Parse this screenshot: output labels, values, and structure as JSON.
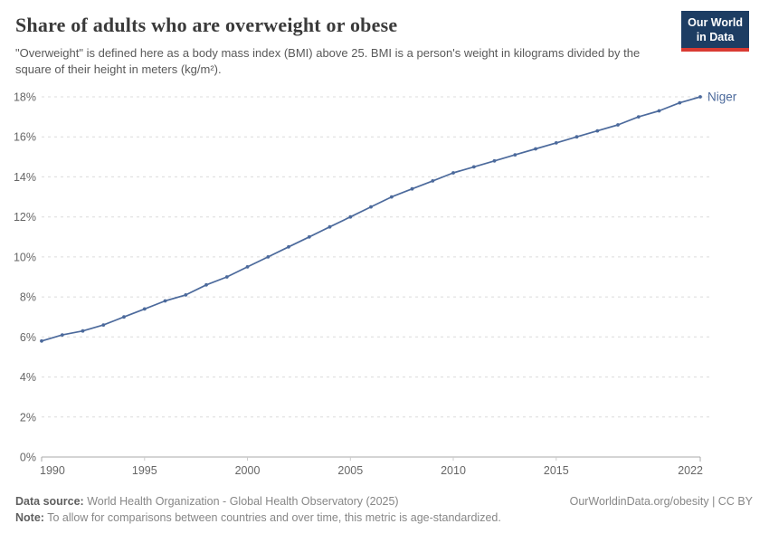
{
  "header": {
    "title": "Share of adults who are overweight or obese",
    "subtitle": "\"Overweight\" is defined here as a body mass index (BMI) above 25. BMI is a person's weight in kilograms divided by the square of their height in meters (kg/m²).",
    "logo_line1": "Our World",
    "logo_line2": "in Data",
    "logo_bg_color": "#1d3d63",
    "logo_stripe_color": "#d93a32"
  },
  "footer": {
    "data_source_label": "Data source:",
    "data_source_value": "World Health Organization - Global Health Observatory (2025)",
    "link": "OurWorldinData.org/obesity | CC BY",
    "note_label": "Note:",
    "note_value": "To allow for comparisons between countries and over time, this metric is age-standardized."
  },
  "chart_data": {
    "type": "line",
    "title": "Share of adults who are overweight or obese",
    "x": [
      1990,
      1991,
      1992,
      1993,
      1994,
      1995,
      1996,
      1997,
      1998,
      1999,
      2000,
      2001,
      2002,
      2003,
      2004,
      2005,
      2006,
      2007,
      2008,
      2009,
      2010,
      2011,
      2012,
      2013,
      2014,
      2015,
      2016,
      2017,
      2018,
      2019,
      2020,
      2021,
      2022
    ],
    "series": [
      {
        "name": "Niger",
        "color": "#4C6A9C",
        "values": [
          5.8,
          6.1,
          6.3,
          6.6,
          7.0,
          7.4,
          7.8,
          8.1,
          8.6,
          9.0,
          9.5,
          10.0,
          10.5,
          11.0,
          11.5,
          12.0,
          12.5,
          13.0,
          13.4,
          13.8,
          14.2,
          14.5,
          14.8,
          15.1,
          15.4,
          15.7,
          16.0,
          16.3,
          16.6,
          17.0,
          17.3,
          17.7,
          18.0
        ]
      }
    ],
    "xlim": [
      1990,
      2022
    ],
    "ylim": [
      0,
      18
    ],
    "xticks": [
      1990,
      1995,
      2000,
      2005,
      2010,
      2015,
      2022
    ],
    "yticks": [
      0,
      2,
      4,
      6,
      8,
      10,
      12,
      14,
      16,
      18
    ],
    "y_tick_suffix": "%",
    "grid": "horizontal-dashed",
    "legend": "inline-end-label",
    "axis_color": "#a8a8a8",
    "grid_color": "#dcdcdc",
    "tick_label_color": "#666666"
  }
}
